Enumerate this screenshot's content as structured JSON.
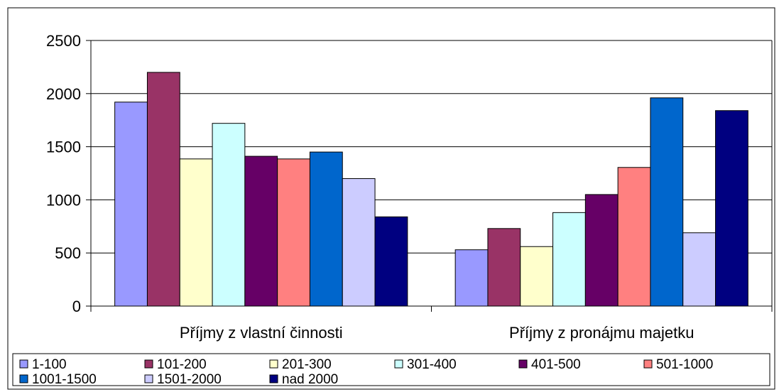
{
  "chart_data": {
    "type": "bar",
    "title": "",
    "xlabel": "",
    "ylabel": "",
    "categories": [
      "Příjmy z vlastní činnosti",
      "Příjmy z pronájmu majetku"
    ],
    "ylim": [
      0,
      2500
    ],
    "yticks": [
      "0",
      "500",
      "1000",
      "1500",
      "2000",
      "2500"
    ],
    "ytick_values": [
      0,
      500,
      1000,
      1500,
      2000,
      2500
    ],
    "grid": true,
    "legend_position": "bottom",
    "series": [
      {
        "name": "1-100",
        "color": "#9999FF",
        "values": [
          1920,
          530
        ]
      },
      {
        "name": "101-200",
        "color": "#993366",
        "values": [
          2200,
          730
        ]
      },
      {
        "name": "201-300",
        "color": "#FFFFCC",
        "values": [
          1385,
          560
        ]
      },
      {
        "name": "301-400",
        "color": "#CCFFFF",
        "values": [
          1720,
          880
        ]
      },
      {
        "name": "401-500",
        "color": "#660066",
        "values": [
          1410,
          1050
        ]
      },
      {
        "name": "501-1000",
        "color": "#FF8080",
        "values": [
          1385,
          1305
        ]
      },
      {
        "name": "1001-1500",
        "color": "#0066CC",
        "values": [
          1450,
          1960
        ]
      },
      {
        "name": "1501-2000",
        "color": "#CCCCFF",
        "values": [
          1200,
          690
        ]
      },
      {
        "name": "nad 2000",
        "color": "#000080",
        "values": [
          840,
          1840
        ]
      }
    ]
  }
}
